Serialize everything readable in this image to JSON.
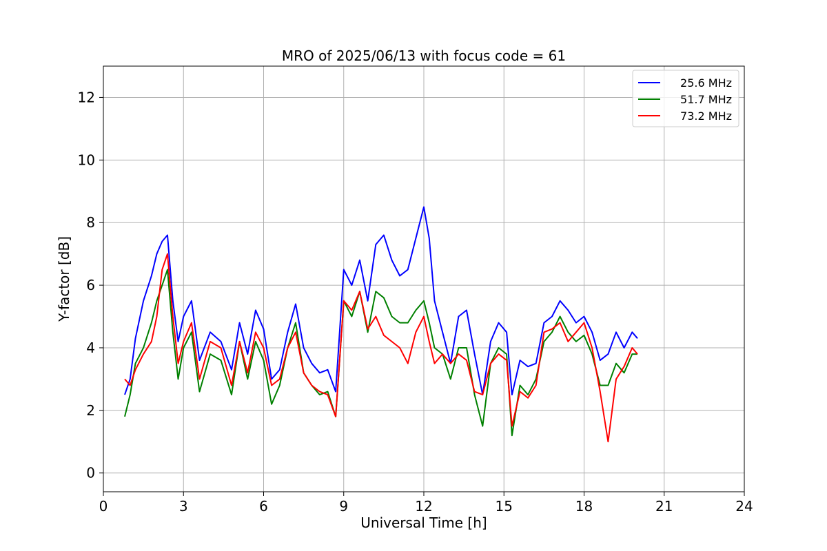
{
  "chart_data": {
    "type": "line",
    "title": "MRO of 2025/06/13 with focus code = 61",
    "xlabel": "Universal Time [h]",
    "ylabel": "Y-factor [dB]",
    "xlim": [
      0,
      24
    ],
    "ylim": [
      -0.6,
      13
    ],
    "xticks": [
      0,
      3,
      6,
      9,
      12,
      15,
      18,
      21,
      24
    ],
    "yticks": [
      0,
      2,
      4,
      6,
      8,
      10,
      12
    ],
    "grid": true,
    "legend_position": "top-right",
    "series": [
      {
        "name": "25.6 MHz",
        "color": "#0000ff",
        "x": [
          0.8,
          1.0,
          1.2,
          1.5,
          1.8,
          2.0,
          2.2,
          2.4,
          2.6,
          2.8,
          3.0,
          3.3,
          3.6,
          4.0,
          4.4,
          4.8,
          5.1,
          5.4,
          5.7,
          6.0,
          6.3,
          6.6,
          6.9,
          7.2,
          7.5,
          7.8,
          8.1,
          8.4,
          8.7,
          9.0,
          9.3,
          9.6,
          9.9,
          10.2,
          10.5,
          10.8,
          11.1,
          11.4,
          11.7,
          12.0,
          12.2,
          12.4,
          12.7,
          13.0,
          13.3,
          13.6,
          13.9,
          14.2,
          14.5,
          14.8,
          15.1,
          15.3,
          15.6,
          15.9,
          16.2,
          16.5,
          16.8,
          17.1,
          17.4,
          17.7,
          18.0,
          18.3,
          18.6,
          18.9,
          19.2,
          19.5,
          19.8,
          20.0
        ],
        "y": [
          2.5,
          3.0,
          4.3,
          5.5,
          6.3,
          7.0,
          7.4,
          7.6,
          5.5,
          4.2,
          5.0,
          5.5,
          3.6,
          4.5,
          4.2,
          3.3,
          4.8,
          3.8,
          5.2,
          4.6,
          3.0,
          3.3,
          4.5,
          5.4,
          4.0,
          3.5,
          3.2,
          3.3,
          2.6,
          6.5,
          6.0,
          6.8,
          5.5,
          7.3,
          7.6,
          6.8,
          6.3,
          6.5,
          7.5,
          8.5,
          7.5,
          5.5,
          4.5,
          3.5,
          5.0,
          5.2,
          3.8,
          2.5,
          4.2,
          4.8,
          4.5,
          2.5,
          3.6,
          3.4,
          3.5,
          4.8,
          5.0,
          5.5,
          5.2,
          4.8,
          5.0,
          4.5,
          3.6,
          3.8,
          4.5,
          4.0,
          4.5,
          4.3
        ]
      },
      {
        "name": "51.7 MHz",
        "color": "#008000",
        "x": [
          0.8,
          1.0,
          1.2,
          1.5,
          1.8,
          2.0,
          2.2,
          2.4,
          2.6,
          2.8,
          3.0,
          3.3,
          3.6,
          4.0,
          4.4,
          4.8,
          5.1,
          5.4,
          5.7,
          6.0,
          6.3,
          6.6,
          6.9,
          7.2,
          7.5,
          7.8,
          8.1,
          8.4,
          8.7,
          9.0,
          9.3,
          9.6,
          9.9,
          10.2,
          10.5,
          10.8,
          11.1,
          11.4,
          11.7,
          12.0,
          12.2,
          12.4,
          12.7,
          13.0,
          13.3,
          13.6,
          13.9,
          14.2,
          14.5,
          14.8,
          15.1,
          15.3,
          15.6,
          15.9,
          16.2,
          16.5,
          16.8,
          17.1,
          17.4,
          17.7,
          18.0,
          18.3,
          18.6,
          18.9,
          19.2,
          19.5,
          19.8,
          20.0
        ],
        "y": [
          1.8,
          2.5,
          3.5,
          4.0,
          4.8,
          5.5,
          6.0,
          6.5,
          4.5,
          3.0,
          4.0,
          4.5,
          2.6,
          3.8,
          3.6,
          2.5,
          4.2,
          3.0,
          4.2,
          3.6,
          2.2,
          2.8,
          4.0,
          4.8,
          3.2,
          2.8,
          2.5,
          2.6,
          1.8,
          5.5,
          5.0,
          5.8,
          4.5,
          5.8,
          5.6,
          5.0,
          4.8,
          4.8,
          5.2,
          5.5,
          4.8,
          4.0,
          3.8,
          3.0,
          4.0,
          4.0,
          2.5,
          1.5,
          3.5,
          4.0,
          3.8,
          1.2,
          2.8,
          2.5,
          3.0,
          4.2,
          4.5,
          5.0,
          4.5,
          4.2,
          4.4,
          3.8,
          2.8,
          2.8,
          3.5,
          3.2,
          3.8,
          3.8
        ]
      },
      {
        "name": "73.2 MHz",
        "color": "#ff0000",
        "x": [
          0.8,
          1.0,
          1.2,
          1.5,
          1.8,
          2.0,
          2.2,
          2.4,
          2.6,
          2.8,
          3.0,
          3.3,
          3.6,
          4.0,
          4.4,
          4.8,
          5.1,
          5.4,
          5.7,
          6.0,
          6.3,
          6.6,
          6.9,
          7.2,
          7.5,
          7.8,
          8.1,
          8.4,
          8.7,
          9.0,
          9.3,
          9.6,
          9.9,
          10.2,
          10.5,
          10.8,
          11.1,
          11.4,
          11.7,
          12.0,
          12.2,
          12.4,
          12.7,
          13.0,
          13.3,
          13.6,
          13.9,
          14.2,
          14.5,
          14.8,
          15.1,
          15.3,
          15.6,
          15.9,
          16.2,
          16.5,
          16.8,
          17.1,
          17.4,
          17.7,
          18.0,
          18.3,
          18.6,
          18.9,
          19.2,
          19.5,
          19.8,
          20.0
        ],
        "y": [
          3.0,
          2.8,
          3.3,
          3.8,
          4.2,
          5.0,
          6.5,
          7.0,
          5.0,
          3.5,
          4.2,
          4.8,
          3.0,
          4.2,
          4.0,
          2.8,
          4.2,
          3.2,
          4.5,
          4.0,
          2.8,
          3.0,
          4.0,
          4.5,
          3.2,
          2.8,
          2.6,
          2.5,
          1.8,
          5.5,
          5.2,
          5.8,
          4.6,
          5.0,
          4.4,
          4.2,
          4.0,
          3.5,
          4.5,
          5.0,
          4.2,
          3.5,
          3.8,
          3.5,
          3.8,
          3.6,
          2.6,
          2.5,
          3.5,
          3.8,
          3.6,
          1.5,
          2.6,
          2.4,
          2.8,
          4.5,
          4.6,
          4.8,
          4.2,
          4.5,
          4.8,
          4.0,
          2.6,
          1.0,
          3.0,
          3.4,
          4.0,
          3.8
        ]
      }
    ]
  }
}
